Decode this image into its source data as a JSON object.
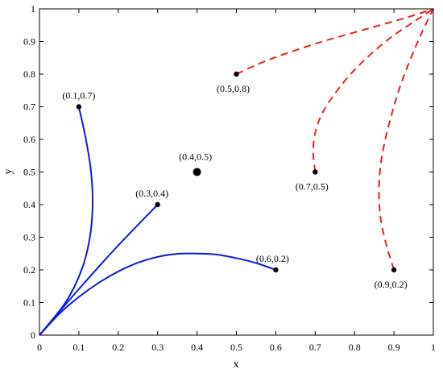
{
  "chart_data": {
    "type": "line",
    "title": "",
    "xlabel": "x",
    "ylabel": "y",
    "xlim": [
      0,
      1
    ],
    "ylim": [
      0,
      1
    ],
    "xticks": [
      0,
      0.1,
      0.2,
      0.3,
      0.4,
      0.5,
      0.6,
      0.7,
      0.8,
      0.9,
      1
    ],
    "yticks": [
      0,
      0.1,
      0.2,
      0.3,
      0.4,
      0.5,
      0.6,
      0.7,
      0.8,
      0.9,
      1
    ],
    "xtick_labels": [
      "0",
      "0.1",
      "0.2",
      "0.3",
      "0.4",
      "0.5",
      "0.6",
      "0.7",
      "0.8",
      "0.9",
      "1"
    ],
    "ytick_labels": [
      "0",
      "0.1",
      "0.2",
      "0.3",
      "0.4",
      "0.5",
      "0.6",
      "0.7",
      "0.8",
      "0.9",
      "1"
    ],
    "grid": false,
    "colors": {
      "blue": "#0a1adf",
      "red": "#e8231c",
      "point": "#000000"
    },
    "center_point": {
      "x": 0.4,
      "y": 0.5,
      "label": "(0.4,0.5)"
    },
    "series": [
      {
        "color": "blue",
        "style": "solid",
        "from": [
          0,
          0
        ],
        "to": [
          0.1,
          0.7
        ],
        "x": [
          0,
          0.066,
          0.107,
          0.128,
          0.135,
          0.131,
          0.118,
          0.1
        ],
        "y": [
          0,
          0.1,
          0.2,
          0.3,
          0.4,
          0.5,
          0.6,
          0.7
        ],
        "point_label": "(0.1,0.7)"
      },
      {
        "color": "blue",
        "style": "solid",
        "from": [
          0,
          0
        ],
        "to": [
          0.3,
          0.4
        ],
        "x": [
          0,
          0.1,
          0.2,
          0.3
        ],
        "y": [
          0,
          0.141,
          0.275,
          0.4
        ],
        "point_label": "(0.3,0.4)"
      },
      {
        "color": "blue",
        "style": "solid",
        "from": [
          0,
          0
        ],
        "to": [
          0.6,
          0.2
        ],
        "x": [
          0,
          0.05,
          0.1,
          0.15,
          0.2,
          0.25,
          0.3,
          0.35,
          0.4,
          0.45,
          0.5,
          0.55,
          0.6
        ],
        "y": [
          0,
          0.065,
          0.117,
          0.16,
          0.195,
          0.222,
          0.24,
          0.249,
          0.25,
          0.247,
          0.236,
          0.221,
          0.2
        ],
        "point_label": "(0.6,0.2)"
      },
      {
        "color": "red",
        "style": "dashed",
        "from": [
          0.5,
          0.8
        ],
        "to": [
          1,
          1
        ],
        "x": [
          0.5,
          0.55,
          0.6,
          0.65,
          0.7,
          0.75,
          0.8,
          0.85,
          0.9,
          0.95,
          1
        ],
        "y": [
          0.8,
          0.828,
          0.852,
          0.873,
          0.893,
          0.911,
          0.928,
          0.945,
          0.962,
          0.98,
          1
        ],
        "point_label": "(0.5,0.8)"
      },
      {
        "color": "red",
        "style": "dashed",
        "from": [
          0.7,
          0.5
        ],
        "to": [
          1,
          1
        ],
        "x": [
          0.7,
          0.695,
          0.7,
          0.718,
          0.75,
          0.79,
          0.84,
          0.895,
          0.95,
          1
        ],
        "y": [
          0.5,
          0.56,
          0.62,
          0.68,
          0.74,
          0.8,
          0.86,
          0.915,
          0.96,
          1
        ],
        "point_label": "(0.7,0.5)"
      },
      {
        "color": "red",
        "style": "dashed",
        "from": [
          0.9,
          0.2
        ],
        "to": [
          1,
          1
        ],
        "x": [
          0.9,
          0.88,
          0.866,
          0.862,
          0.866,
          0.878,
          0.895,
          0.915,
          0.94,
          0.968,
          1
        ],
        "y": [
          0.2,
          0.28,
          0.36,
          0.44,
          0.52,
          0.6,
          0.68,
          0.76,
          0.84,
          0.92,
          1
        ],
        "point_label": "(0.9,0.2)"
      }
    ]
  }
}
